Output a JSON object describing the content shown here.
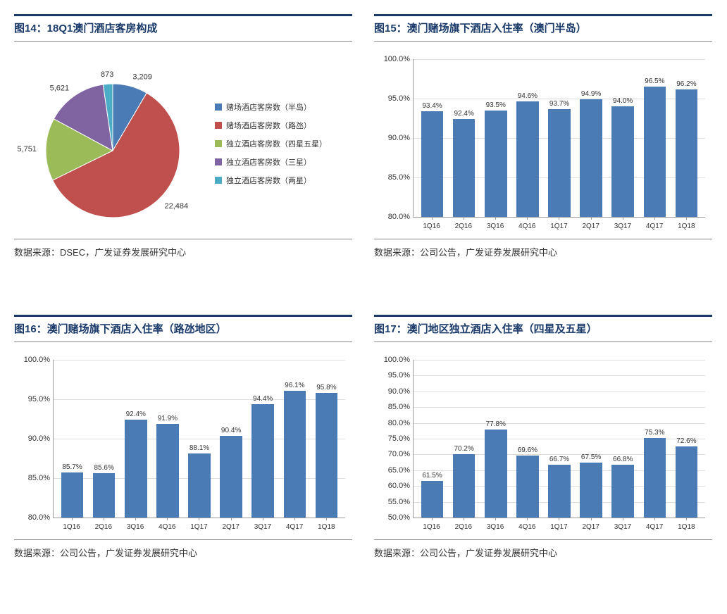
{
  "panels": {
    "p14": {
      "title": "图14：18Q1澳门酒店客房构成",
      "source": "数据来源：DSEC，广发证券发展研究中心",
      "pie": {
        "colors": [
          "#4a7bb5",
          "#c0504d",
          "#9bbb59",
          "#8064a2",
          "#4bacc6"
        ],
        "slices": [
          {
            "label": "赌场酒店客房数（半岛）",
            "value": 3209,
            "display": "3,209"
          },
          {
            "label": "赌场酒店客房数（路氹）",
            "value": 22484,
            "display": "22,484"
          },
          {
            "label": "独立酒店客房数（四星五星）",
            "value": 5751,
            "display": "5,751"
          },
          {
            "label": "独立酒店客房数（三星）",
            "value": 5621,
            "display": "5,621"
          },
          {
            "label": "独立酒店客房数（两星）",
            "value": 873,
            "display": "873"
          }
        ]
      }
    },
    "p15": {
      "title": "图15：澳门赌场旗下酒店入住率（澳门半岛）",
      "source": "数据来源：公司公告，广发证券发展研究中心",
      "bar": {
        "ymin": 80,
        "ymax": 100,
        "ystep": 5,
        "bar_color": "#4a7bb5",
        "categories": [
          "1Q16",
          "2Q16",
          "3Q16",
          "4Q16",
          "1Q17",
          "2Q17",
          "3Q17",
          "4Q17",
          "1Q18"
        ],
        "values": [
          93.4,
          92.4,
          93.5,
          94.6,
          93.7,
          94.9,
          94.0,
          96.5,
          96.2
        ]
      }
    },
    "p16": {
      "title": "图16：澳门赌场旗下酒店入住率（路氹地区）",
      "source": "数据来源：公司公告，广发证券发展研究中心",
      "bar": {
        "ymin": 80,
        "ymax": 100,
        "ystep": 5,
        "bar_color": "#4a7bb5",
        "categories": [
          "1Q16",
          "2Q16",
          "3Q16",
          "4Q16",
          "1Q17",
          "2Q17",
          "3Q17",
          "4Q17",
          "1Q18"
        ],
        "values": [
          85.7,
          85.6,
          92.4,
          91.9,
          88.1,
          90.4,
          94.4,
          96.1,
          95.8
        ]
      }
    },
    "p17": {
      "title": "图17：澳门地区独立酒店入住率（四星及五星）",
      "source": "数据来源：公司公告，广发证券发展研究中心",
      "bar": {
        "ymin": 50,
        "ymax": 100,
        "ystep": 5,
        "bar_color": "#4a7bb5",
        "categories": [
          "1Q16",
          "2Q16",
          "3Q16",
          "4Q16",
          "1Q17",
          "2Q17",
          "3Q17",
          "4Q17",
          "1Q18"
        ],
        "values": [
          61.5,
          70.2,
          77.8,
          69.6,
          66.7,
          67.5,
          66.8,
          75.3,
          72.6
        ]
      }
    }
  },
  "styling": {
    "title_color": "#1a3a6a",
    "title_border_top": "#1a3a6a",
    "grid_color": "#dddddd",
    "axis_color": "#999999",
    "text_color": "#333333",
    "bg": "#ffffff",
    "title_fontsize": 15,
    "label_fontsize": 11,
    "value_fontsize": 10
  }
}
